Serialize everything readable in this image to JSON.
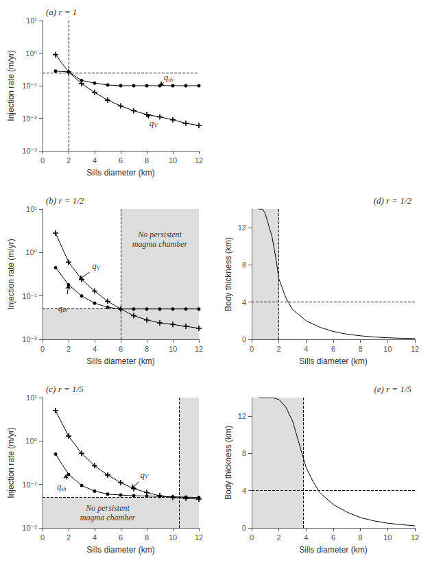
{
  "chart_data": [
    {
      "type": "line",
      "title": "(a) r = 1",
      "xlabel": "Sills diameter (km)",
      "ylabel": "Injection rate (m/yr)",
      "log": "y",
      "grid": false,
      "xlim": [
        0,
        12
      ],
      "ylim": [
        0.001,
        10
      ],
      "xticks": [
        0,
        2,
        4,
        6,
        8,
        10,
        12
      ],
      "yticks": [
        {
          "value": 0.001,
          "label": "10⁻³"
        },
        {
          "value": 0.01,
          "label": "10⁻²"
        },
        {
          "value": 0.1,
          "label": "10⁻¹"
        },
        {
          "value": 1,
          "label": "10⁰"
        },
        {
          "value": 10,
          "label": "10¹"
        }
      ],
      "series": [
        {
          "x": [
            1,
            2,
            3,
            4,
            5,
            6,
            7,
            8,
            9,
            10,
            11,
            12
          ],
          "values": [
            0.28,
            0.265,
            0.145,
            0.12,
            0.105,
            0.1,
            0.1,
            0.1,
            0.1,
            0.1,
            0.1,
            0.1
          ],
          "color": "#000000",
          "marker": "circle",
          "line_style": "solid"
        },
        {
          "x": [
            1,
            2,
            3,
            4,
            5,
            6,
            7,
            8,
            9,
            10,
            11,
            12
          ],
          "values": [
            0.9,
            0.265,
            0.115,
            0.062,
            0.036,
            0.024,
            0.017,
            0.013,
            0.011,
            0.009,
            0.007,
            0.006
          ],
          "color": "#000000",
          "marker": "plus",
          "line_style": "solid"
        }
      ],
      "vlines": [
        {
          "x": 2.0,
          "color": "#000000",
          "line_style": "dashed"
        }
      ],
      "hlines": [
        {
          "y": 0.25,
          "color": "#000000",
          "line_style": "dashed"
        }
      ],
      "hatch": [],
      "annotations": [
        {
          "text": "qth",
          "x": 9.3,
          "y": 0.13,
          "arrow": {
            "from": [
              9.3,
              0.125
            ],
            "to": [
              9.0,
              0.1
            ]
          },
          "color": "#000000"
        },
        {
          "text": "qV",
          "x": 8.2,
          "y": 0.01,
          "arrow": {
            "from": [
              8.2,
              0.0115
            ],
            "to": [
              8.0,
              0.013
            ]
          },
          "color": "#000000"
        }
      ]
    },
    {
      "type": "line",
      "title": "(b) r = 1/2",
      "xlabel": "Sills diameter (km)",
      "ylabel": "Injection rate (m/yr)",
      "log": "y",
      "grid": false,
      "xlim": [
        0,
        12
      ],
      "ylim": [
        0.01,
        10
      ],
      "xticks": [
        0,
        2,
        4,
        6,
        8,
        10,
        12
      ],
      "yticks": [
        {
          "value": 0.01,
          "label": "10⁻²"
        },
        {
          "value": 0.1,
          "label": "10⁻¹"
        },
        {
          "value": 1,
          "label": "10⁰"
        },
        {
          "value": 10,
          "label": "10¹"
        }
      ],
      "series": [
        {
          "x": [
            1,
            2,
            3,
            4,
            5,
            6,
            7,
            8,
            9,
            10,
            11,
            12
          ],
          "values": [
            0.45,
            0.18,
            0.1,
            0.068,
            0.055,
            0.05,
            0.05,
            0.05,
            0.05,
            0.05,
            0.05,
            0.05
          ],
          "color": "#000000",
          "marker": "circle",
          "line_style": "solid"
        },
        {
          "x": [
            1,
            2,
            3,
            4,
            5,
            6,
            7,
            8,
            9,
            10,
            11,
            12
          ],
          "values": [
            2.8,
            0.6,
            0.24,
            0.13,
            0.075,
            0.05,
            0.035,
            0.028,
            0.024,
            0.022,
            0.02,
            0.018
          ],
          "color": "#000000",
          "marker": "plus",
          "line_style": "solid"
        }
      ],
      "vlines": [
        {
          "x": 6.0,
          "color": "#000000",
          "line_style": "dashed"
        }
      ],
      "hlines": [
        {
          "y": 0.05,
          "color": "#000000",
          "line_style": "dashed"
        }
      ],
      "hatch": [
        {
          "x": [
            0,
            12
          ],
          "y": [
            0.01,
            0.05
          ],
          "color": "#888888"
        },
        {
          "x": [
            6.0,
            12
          ],
          "y": [
            0.05,
            10
          ],
          "color": "#888888"
        }
      ],
      "annotations": [
        {
          "text": "No persistent\nmagma chamber",
          "x": 9.0,
          "y": 2.0,
          "color": "#000000"
        },
        {
          "text": "qV",
          "x": 3.8,
          "y": 0.38,
          "arrow": {
            "from": [
              3.6,
              0.35
            ],
            "to": [
              2.8,
              0.24
            ]
          },
          "color": "#000000"
        },
        {
          "text": "qth",
          "x": 1.2,
          "y": 0.068,
          "arrow": {
            "from": [
              1.9,
              0.11
            ],
            "to": [
              2.0,
              0.18
            ]
          },
          "color": "#000000"
        }
      ]
    },
    {
      "type": "line",
      "title": "(c) r = 1/5",
      "xlabel": "Sills diameter (km)",
      "ylabel": "Injection rate (m/yr)",
      "log": "y",
      "grid": false,
      "xlim": [
        0,
        12
      ],
      "ylim": [
        0.01,
        10
      ],
      "xticks": [
        0,
        2,
        4,
        6,
        8,
        10,
        12
      ],
      "yticks": [
        {
          "value": 0.01,
          "label": "10⁻²"
        },
        {
          "value": 0.1,
          "label": "10⁻¹"
        },
        {
          "value": 1,
          "label": "10⁰"
        },
        {
          "value": 10,
          "label": "10¹"
        }
      ],
      "series": [
        {
          "x": [
            1,
            2,
            3,
            4,
            5,
            6,
            7,
            8,
            9,
            10,
            11,
            12
          ],
          "values": [
            0.5,
            0.17,
            0.095,
            0.07,
            0.06,
            0.057,
            0.055,
            0.054,
            0.053,
            0.052,
            0.051,
            0.05
          ],
          "color": "#000000",
          "marker": "circle",
          "line_style": "solid"
        },
        {
          "x": [
            1,
            2,
            3,
            4,
            5,
            6,
            7,
            8,
            9,
            10,
            11,
            12
          ],
          "values": [
            5.0,
            1.3,
            0.52,
            0.27,
            0.165,
            0.11,
            0.08,
            0.065,
            0.055,
            0.05,
            0.048,
            0.046
          ],
          "color": "#000000",
          "marker": "plus",
          "line_style": "solid"
        }
      ],
      "vlines": [
        {
          "x": 10.5,
          "color": "#000000",
          "line_style": "dashed"
        }
      ],
      "hlines": [
        {
          "y": 0.05,
          "color": "#000000",
          "line_style": "dashed"
        }
      ],
      "hatch": [
        {
          "x": [
            0,
            12
          ],
          "y": [
            0.01,
            0.05
          ],
          "color": "#888888"
        },
        {
          "x": [
            10.5,
            12
          ],
          "y": [
            0.05,
            10
          ],
          "color": "#888888"
        }
      ],
      "annotations": [
        {
          "text": "No persistent\nmagma chamber",
          "x": 5.0,
          "y": 0.022,
          "color": "#000000"
        },
        {
          "text": "qV",
          "x": 7.5,
          "y": 0.13,
          "arrow": {
            "from": [
              7.4,
              0.115
            ],
            "to": [
              6.8,
              0.08
            ]
          },
          "color": "#000000"
        },
        {
          "text": "qth",
          "x": 1.1,
          "y": 0.115,
          "arrow": {
            "from": [
              1.8,
              0.13
            ],
            "to": [
              1.8,
              0.17
            ]
          },
          "color": "#000000"
        }
      ]
    },
    {
      "type": "line",
      "title": "(d) r = 1/2",
      "xlabel": "Sills diameter (km)",
      "ylabel": "Body thickness (km)",
      "grid": false,
      "xlim": [
        0,
        12
      ],
      "ylim": [
        0,
        14
      ],
      "xticks": [
        0,
        2,
        4,
        6,
        8,
        10,
        12
      ],
      "yticks": [
        0,
        4,
        8,
        12
      ],
      "series": [
        {
          "x": [
            0.5,
            0.8,
            1.0,
            1.2,
            1.5,
            1.8,
            2.0,
            2.5,
            3.0,
            4.0,
            5.0,
            6.0,
            7.0,
            8.0,
            9.0,
            10.0,
            11.0,
            12.0
          ],
          "values": [
            14,
            14,
            13.5,
            12.5,
            11.0,
            8.5,
            6.5,
            4.5,
            3.2,
            2.0,
            1.3,
            0.85,
            0.55,
            0.38,
            0.25,
            0.17,
            0.12,
            0.08
          ],
          "color": "#000000",
          "line_style": "solid"
        }
      ],
      "vlines": [
        {
          "x": 2.0,
          "color": "#000000",
          "line_style": "dashed"
        }
      ],
      "hlines": [
        {
          "y": 4.0,
          "color": "#000000",
          "line_style": "dashed"
        }
      ],
      "hatch": [
        {
          "x": [
            0,
            2.0
          ],
          "y": [
            0,
            14
          ],
          "color": "#888888"
        }
      ],
      "annotations": []
    },
    {
      "type": "line",
      "title": "(e) r = 1/5",
      "xlabel": "Sills diameter (km)",
      "ylabel": "Body thickness (km)",
      "grid": false,
      "xlim": [
        0,
        12
      ],
      "ylim": [
        0,
        14
      ],
      "xticks": [
        0,
        2,
        4,
        6,
        8,
        10,
        12
      ],
      "yticks": [
        0,
        4,
        8,
        12
      ],
      "series": [
        {
          "x": [
            0.5,
            1.0,
            1.5,
            2.0,
            2.5,
            3.0,
            3.5,
            3.8,
            4.0,
            4.5,
            5.0,
            6.0,
            7.0,
            8.0,
            9.0,
            10.0,
            11.0,
            12.0
          ],
          "values": [
            14,
            14,
            14,
            13.8,
            13.0,
            11.5,
            9.0,
            7.5,
            6.5,
            5.0,
            3.8,
            2.5,
            1.7,
            1.1,
            0.75,
            0.5,
            0.35,
            0.22
          ],
          "color": "#000000",
          "line_style": "solid"
        }
      ],
      "vlines": [
        {
          "x": 3.8,
          "color": "#000000",
          "line_style": "dashed"
        }
      ],
      "hlines": [
        {
          "y": 4.0,
          "color": "#000000",
          "line_style": "dashed"
        }
      ],
      "hatch": [
        {
          "x": [
            0,
            3.8
          ],
          "y": [
            0,
            14
          ],
          "color": "#888888"
        }
      ],
      "annotations": []
    }
  ]
}
